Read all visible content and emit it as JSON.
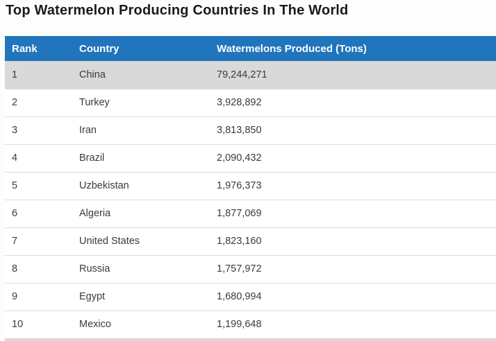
{
  "title": "Top Watermelon Producing Countries In The World",
  "colors": {
    "header_bg": "#2075bc",
    "header_text": "#ffffff",
    "highlight_row_bg": "#d9d9d9",
    "row_border": "#dcdcdc"
  },
  "table": {
    "columns": [
      "Rank",
      "Country",
      "Watermelons Produced (Tons)"
    ],
    "rows": [
      {
        "rank": "1",
        "country": "China",
        "tons": "79,244,271"
      },
      {
        "rank": "2",
        "country": "Turkey",
        "tons": "3,928,892"
      },
      {
        "rank": "3",
        "country": "Iran",
        "tons": "3,813,850"
      },
      {
        "rank": "4",
        "country": "Brazil",
        "tons": "2,090,432"
      },
      {
        "rank": "5",
        "country": "Uzbekistan",
        "tons": "1,976,373"
      },
      {
        "rank": "6",
        "country": "Algeria",
        "tons": "1,877,069"
      },
      {
        "rank": "7",
        "country": "United States",
        "tons": "1,823,160"
      },
      {
        "rank": "8",
        "country": "Russia",
        "tons": "1,757,972"
      },
      {
        "rank": "9",
        "country": "Egypt",
        "tons": "1,680,994"
      },
      {
        "rank": "10",
        "country": "Mexico",
        "tons": "1,199,648"
      }
    ]
  },
  "chart_data": {
    "type": "table",
    "title": "Top Watermelon Producing Countries In The World",
    "columns": [
      "Rank",
      "Country",
      "Watermelons Produced (Tons)"
    ],
    "rows": [
      [
        1,
        "China",
        79244271
      ],
      [
        2,
        "Turkey",
        3928892
      ],
      [
        3,
        "Iran",
        3813850
      ],
      [
        4,
        "Brazil",
        2090432
      ],
      [
        5,
        "Uzbekistan",
        1976373
      ],
      [
        6,
        "Algeria",
        1877069
      ],
      [
        7,
        "United States",
        1823160
      ],
      [
        8,
        "Russia",
        1757972
      ],
      [
        9,
        "Egypt",
        1680994
      ],
      [
        10,
        "Mexico",
        1199648
      ]
    ]
  }
}
